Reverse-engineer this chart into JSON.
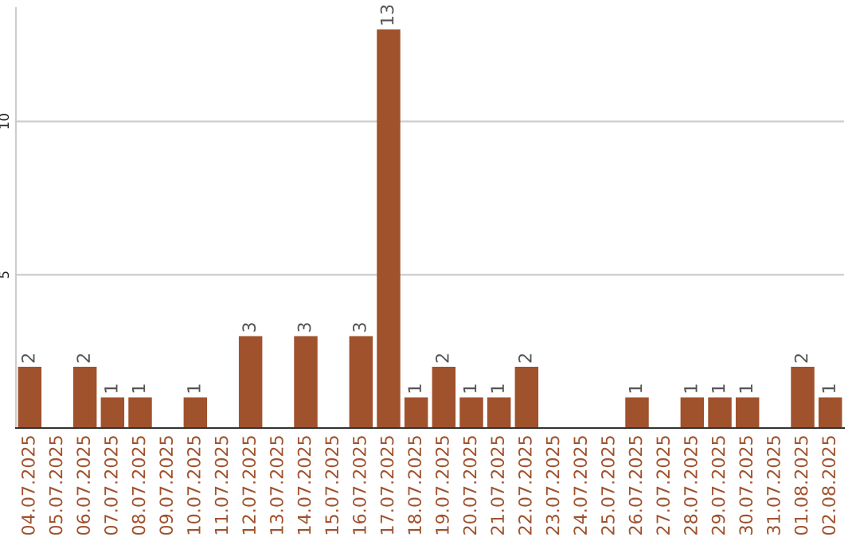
{
  "chart_data": {
    "type": "bar",
    "categories": [
      "04.07.2025",
      "05.07.2025",
      "06.07.2025",
      "07.07.2025",
      "08.07.2025",
      "09.07.2025",
      "10.07.2025",
      "11.07.2025",
      "12.07.2025",
      "13.07.2025",
      "14.07.2025",
      "15.07.2025",
      "16.07.2025",
      "17.07.2025",
      "18.07.2025",
      "19.07.2025",
      "20.07.2025",
      "21.07.2025",
      "22.07.2025",
      "23.07.2025",
      "24.07.2025",
      "25.07.2025",
      "26.07.2025",
      "27.07.2025",
      "28.07.2025",
      "29.07.2025",
      "30.07.2025",
      "31.07.2025",
      "01.08.2025",
      "02.08.2025"
    ],
    "values": [
      2,
      0,
      2,
      1,
      1,
      0,
      1,
      0,
      3,
      0,
      3,
      0,
      3,
      13,
      1,
      2,
      1,
      1,
      2,
      0,
      0,
      0,
      1,
      0,
      1,
      1,
      1,
      0,
      2,
      1
    ],
    "value_labels": [
      "2",
      null,
      "2",
      "1",
      "1",
      null,
      "1",
      null,
      "3",
      null,
      "3",
      null,
      "3",
      "13",
      "1",
      "2",
      "1",
      "1",
      "2",
      null,
      null,
      null,
      "1",
      null,
      "1",
      "1",
      "1",
      null,
      "2",
      "1"
    ],
    "color": "#a0522d",
    "ylim": [
      0,
      13.7
    ],
    "yticks": [
      5,
      10
    ],
    "grid": "y"
  }
}
